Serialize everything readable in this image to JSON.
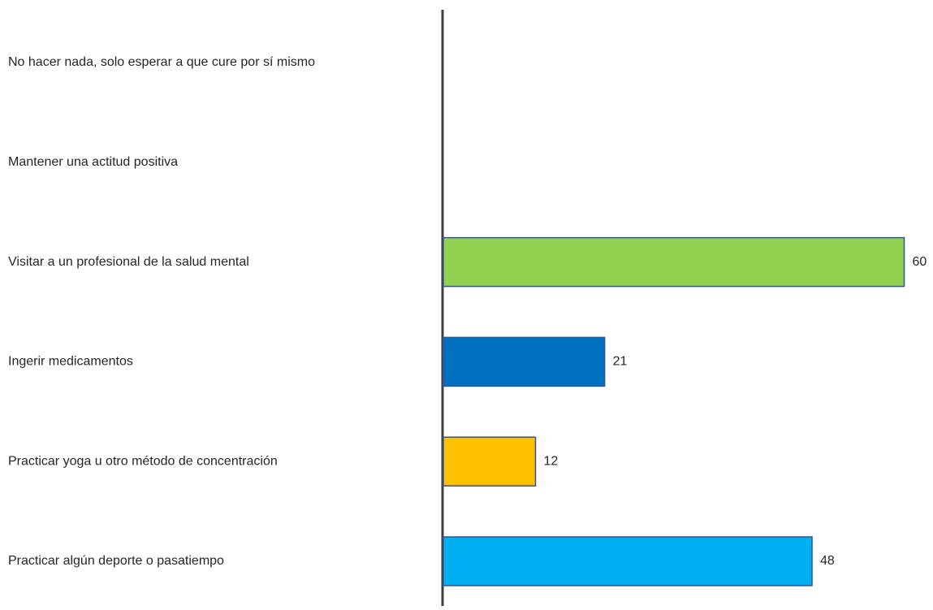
{
  "chart_data": {
    "type": "hbar",
    "categories": [
      "No hacer nada, solo esperar a que cure por sí mismo",
      "Mantener una actitud positiva",
      "Visitar a un profesional de la salud mental",
      "Ingerir medicamentos",
      "Practicar yoga u otro método de concentración",
      "Practicar algún deporte o pasatiempo"
    ],
    "values": [
      null,
      null,
      60,
      21,
      12,
      48
    ],
    "colors": [
      null,
      null,
      "#92d050",
      "#0070c0",
      "#ffc000",
      "#00b0f0"
    ],
    "xlim": [
      0,
      61
    ]
  }
}
